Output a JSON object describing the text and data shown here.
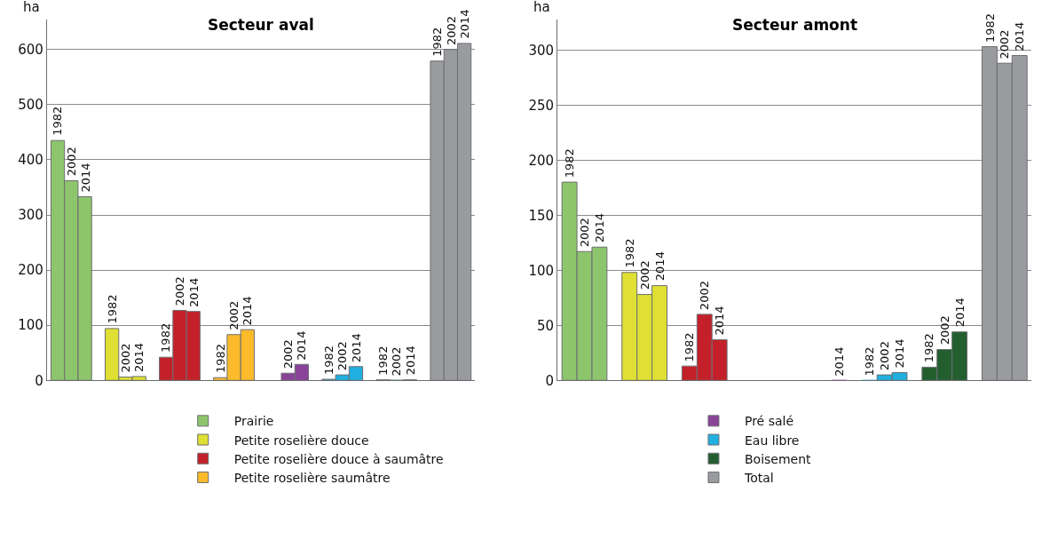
{
  "chart_data": [
    {
      "type": "bar",
      "title": "Secteur aval",
      "ylabel": "ha",
      "categories": [
        "1982",
        "2002",
        "2014",
        null,
        "1982",
        "2002",
        "2014",
        null,
        "1982",
        "2002",
        "2014",
        null,
        "1982",
        "2002",
        "2014",
        null,
        null,
        "2002",
        "2014",
        null,
        "1982",
        "2002",
        "2014",
        null,
        "1982",
        "2002",
        "2014",
        null,
        "1982",
        "2002",
        "2014"
      ],
      "ylim": [
        0,
        655
      ],
      "yticks": [
        0,
        100,
        200,
        300,
        400,
        500,
        600
      ],
      "grid": "y",
      "legend": "bottom",
      "tick_labels": "y",
      "series": [
        {
          "name": "Prairie",
          "color": "#8dc56c",
          "values": [
            435,
            362,
            333,
            null,
            null,
            null,
            null,
            null,
            null,
            null,
            null,
            null,
            null,
            null,
            null,
            null,
            null,
            null,
            null,
            null,
            null,
            null,
            null,
            null,
            null,
            null,
            null,
            null,
            null,
            null,
            null
          ]
        },
        {
          "name": "Petite roselière douce",
          "color": "#dfe033",
          "values": [
            null,
            null,
            null,
            null,
            94,
            6,
            7,
            null,
            null,
            null,
            null,
            null,
            null,
            null,
            null,
            null,
            null,
            null,
            null,
            null,
            null,
            null,
            null,
            null,
            null,
            null,
            null,
            null,
            null,
            null,
            null
          ]
        },
        {
          "name": "Petite roselière douce à saumâtre",
          "color": "#c4202a",
          "values": [
            null,
            null,
            null,
            null,
            null,
            null,
            null,
            null,
            42,
            127,
            125,
            null,
            null,
            null,
            null,
            null,
            null,
            null,
            null,
            null,
            null,
            null,
            null,
            null,
            null,
            null,
            null,
            null,
            null,
            null,
            null
          ]
        },
        {
          "name": "Petite roselière saumâtre",
          "color": "#fbbb2b",
          "values": [
            null,
            null,
            null,
            null,
            null,
            null,
            null,
            null,
            null,
            null,
            null,
            null,
            5,
            83,
            92,
            null,
            null,
            null,
            null,
            null,
            null,
            null,
            null,
            null,
            null,
            null,
            null,
            null,
            null,
            null,
            null
          ]
        },
        {
          "name": "Pré salé",
          "color": "#8a4398",
          "values": [
            null,
            null,
            null,
            null,
            null,
            null,
            null,
            null,
            null,
            null,
            null,
            null,
            null,
            null,
            null,
            null,
            null,
            13,
            29,
            null,
            null,
            null,
            null,
            null,
            null,
            null,
            null,
            null,
            null,
            null,
            null
          ]
        },
        {
          "name": "Eau libre",
          "color": "#1fb0e0",
          "values": [
            null,
            null,
            null,
            null,
            null,
            null,
            null,
            null,
            null,
            null,
            null,
            null,
            null,
            null,
            null,
            null,
            null,
            null,
            null,
            null,
            2,
            10,
            25,
            null,
            null,
            null,
            null,
            null,
            null,
            null,
            null
          ]
        },
        {
          "name": "Boisement",
          "color": "#235e2e",
          "values": [
            null,
            null,
            null,
            null,
            null,
            null,
            null,
            null,
            null,
            null,
            null,
            null,
            null,
            null,
            null,
            null,
            null,
            null,
            null,
            null,
            null,
            null,
            null,
            null,
            1,
            0,
            1,
            null,
            null,
            null,
            null
          ]
        },
        {
          "name": "Total",
          "color": "#999b9e",
          "values": [
            null,
            null,
            null,
            null,
            null,
            null,
            null,
            null,
            null,
            null,
            null,
            null,
            null,
            null,
            null,
            null,
            null,
            null,
            null,
            null,
            null,
            null,
            null,
            null,
            null,
            null,
            null,
            null,
            579,
            600,
            611
          ]
        }
      ]
    },
    {
      "type": "bar",
      "title": "Secteur amont",
      "ylabel": "ha",
      "categories": [
        "1982",
        "2002",
        "2014",
        null,
        "1982",
        "2002",
        "2014",
        null,
        "1982",
        "2002",
        "2014",
        null,
        null,
        null,
        null,
        null,
        null,
        null,
        "2014",
        null,
        "1982",
        "2002",
        "2014",
        null,
        "1982",
        "2002",
        "2014",
        null,
        "1982",
        "2002",
        "2014"
      ],
      "ylim": [
        0,
        328
      ],
      "yticks": [
        0,
        50,
        100,
        150,
        200,
        250,
        300
      ],
      "grid": "y",
      "tick_labels": "y",
      "series": [
        {
          "color": "#8dc56c",
          "values": [
            180,
            117,
            121,
            null,
            null,
            null,
            null,
            null,
            null,
            null,
            null,
            null,
            null,
            null,
            null,
            null,
            null,
            null,
            null,
            null,
            null,
            null,
            null,
            null,
            null,
            null,
            null,
            null,
            null,
            null,
            null
          ]
        },
        {
          "color": "#dfe033",
          "values": [
            null,
            null,
            null,
            null,
            98,
            78,
            86,
            null,
            null,
            null,
            null,
            null,
            null,
            null,
            null,
            null,
            null,
            null,
            null,
            null,
            null,
            null,
            null,
            null,
            null,
            null,
            null,
            null,
            null,
            null,
            null
          ]
        },
        {
          "color": "#c4202a",
          "values": [
            null,
            null,
            null,
            null,
            null,
            null,
            null,
            null,
            13,
            60,
            37,
            null,
            null,
            null,
            null,
            null,
            null,
            null,
            null,
            null,
            null,
            null,
            null,
            null,
            null,
            null,
            null,
            null,
            null,
            null,
            null
          ]
        },
        {
          "color": "#fbbb2b",
          "values": [
            null,
            null,
            null,
            null,
            null,
            null,
            null,
            null,
            null,
            null,
            null,
            null,
            null,
            null,
            null,
            null,
            null,
            null,
            null,
            null,
            null,
            null,
            null,
            null,
            null,
            null,
            null,
            null,
            null,
            null,
            null
          ]
        },
        {
          "color": "#8a4398",
          "values": [
            null,
            null,
            null,
            null,
            null,
            null,
            null,
            null,
            null,
            null,
            null,
            null,
            null,
            null,
            null,
            null,
            null,
            null,
            0,
            null,
            null,
            null,
            null,
            null,
            null,
            null,
            null,
            null,
            null,
            null,
            null
          ]
        },
        {
          "color": "#1fb0e0",
          "values": [
            null,
            null,
            null,
            null,
            null,
            null,
            null,
            null,
            null,
            null,
            null,
            null,
            null,
            null,
            null,
            null,
            null,
            null,
            null,
            null,
            0,
            5,
            7,
            null,
            null,
            null,
            null,
            null,
            null,
            null,
            null
          ]
        },
        {
          "color": "#235e2e",
          "values": [
            null,
            null,
            null,
            null,
            null,
            null,
            null,
            null,
            null,
            null,
            null,
            null,
            null,
            null,
            null,
            null,
            null,
            null,
            null,
            null,
            null,
            null,
            null,
            null,
            12,
            28,
            44,
            null,
            null,
            null,
            null
          ]
        },
        {
          "color": "#999b9e",
          "values": [
            null,
            null,
            null,
            null,
            null,
            null,
            null,
            null,
            null,
            null,
            null,
            null,
            null,
            null,
            null,
            null,
            null,
            null,
            null,
            null,
            null,
            null,
            null,
            null,
            null,
            null,
            null,
            null,
            303,
            288,
            295
          ]
        }
      ]
    }
  ]
}
